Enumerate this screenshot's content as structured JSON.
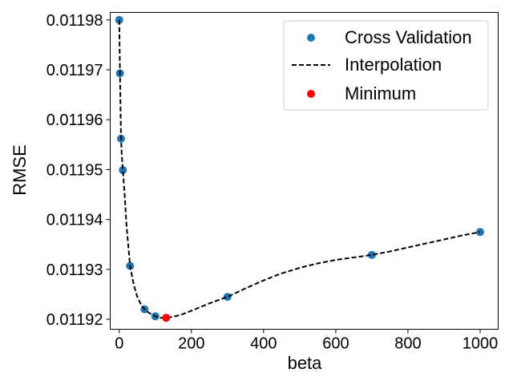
{
  "chart_data": {
    "type": "scatter",
    "xlabel": "beta",
    "ylabel": "RMSE",
    "xlim": [
      -25,
      1050
    ],
    "ylim": [
      0.011918,
      0.0119815
    ],
    "xticks": [
      0,
      200,
      400,
      600,
      800,
      1000
    ],
    "xtick_labels": [
      "0",
      "200",
      "400",
      "600",
      "800",
      "1000"
    ],
    "yticks": [
      0.01192,
      0.01193,
      0.01194,
      0.01195,
      0.01196,
      0.01197,
      0.01198
    ],
    "ytick_labels": [
      "0.01192",
      "0.01193",
      "0.01194",
      "0.01195",
      "0.01196",
      "0.01197",
      "0.01198"
    ],
    "legend_position": "top-right",
    "series": [
      {
        "name": "Cross Validation",
        "kind": "scatter",
        "color": "#1f77b4",
        "x": [
          0,
          2,
          5,
          10,
          30,
          70,
          100,
          300,
          700,
          1000
        ],
        "y": [
          0.01198,
          0.0119693,
          0.0119562,
          0.0119499,
          0.0119307,
          0.011922,
          0.0119206,
          0.0119245,
          0.0119329,
          0.0119375
        ]
      },
      {
        "name": "Interpolation",
        "kind": "line",
        "style": "dashed",
        "color": "#000000",
        "x": [
          0,
          1,
          2,
          3,
          5,
          7,
          10,
          15,
          20,
          30,
          40,
          50,
          60,
          70,
          80,
          100,
          115,
          130,
          150,
          175,
          200,
          250,
          300,
          350,
          400,
          450,
          500,
          550,
          600,
          650,
          700,
          750,
          800,
          850,
          900,
          950,
          1000
        ],
        "y": [
          0.01198,
          0.0119745,
          0.0119693,
          0.011965,
          0.0119562,
          0.011953,
          0.0119499,
          0.011945,
          0.011939,
          0.0119307,
          0.011927,
          0.0119245,
          0.011923,
          0.011922,
          0.0119214,
          0.0119206,
          0.0119203,
          0.0119203,
          0.0119205,
          0.011921,
          0.0119217,
          0.0119232,
          0.0119245,
          0.0119262,
          0.0119278,
          0.0119292,
          0.0119303,
          0.0119312,
          0.0119319,
          0.0119324,
          0.0119329,
          0.0119336,
          0.0119344,
          0.0119352,
          0.011936,
          0.0119368,
          0.0119375
        ]
      },
      {
        "name": "Minimum",
        "kind": "scatter",
        "color": "#ff0000",
        "x": [
          130
        ],
        "y": [
          0.0119203
        ]
      }
    ]
  }
}
